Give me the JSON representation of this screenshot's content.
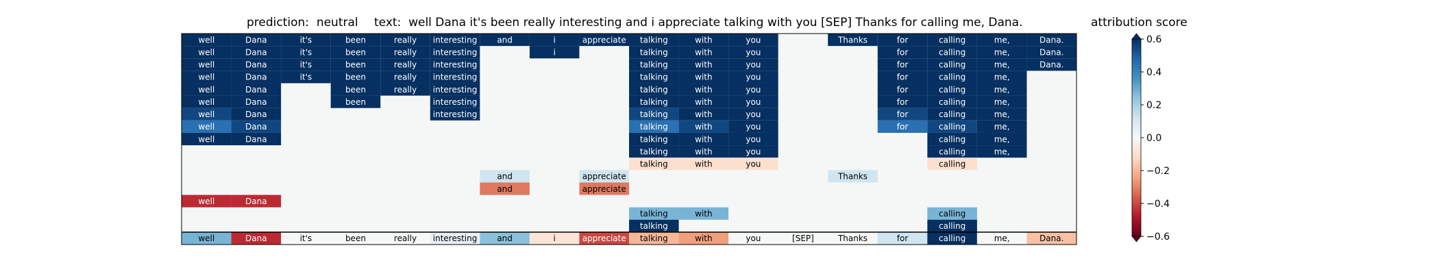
{
  "header": {
    "prediction_label": "prediction:  neutral",
    "text_label": "text:  well Dana it's been really interesting and i appreciate talking with you [SEP] Thanks for calling me, Dana.",
    "colorbar_title": "attribution score"
  },
  "chart_data": {
    "type": "heatmap",
    "tokens": [
      "well",
      "Dana",
      "it's",
      "been",
      "really",
      "interesting",
      "and",
      "i",
      "appreciate",
      "talking",
      "with",
      "you",
      "[SEP]",
      "Thanks",
      "for",
      "calling",
      "me,",
      "Dana."
    ],
    "rows": [
      [
        0.6,
        0.6,
        0.6,
        0.6,
        0.6,
        0.6,
        0.6,
        0.6,
        0.6,
        0.6,
        0.6,
        0.6,
        null,
        0.6,
        0.6,
        0.6,
        0.6,
        0.6
      ],
      [
        0.6,
        0.6,
        0.6,
        0.6,
        0.6,
        0.6,
        null,
        0.6,
        null,
        0.6,
        0.6,
        0.6,
        null,
        null,
        0.6,
        0.6,
        0.6,
        0.6
      ],
      [
        0.6,
        0.6,
        0.6,
        0.6,
        0.6,
        0.6,
        null,
        null,
        null,
        0.6,
        0.6,
        0.6,
        null,
        null,
        0.6,
        0.6,
        0.6,
        0.6
      ],
      [
        0.6,
        0.6,
        0.6,
        0.6,
        0.6,
        0.6,
        null,
        null,
        null,
        0.6,
        0.6,
        0.6,
        null,
        null,
        0.6,
        0.6,
        0.6,
        null
      ],
      [
        0.6,
        0.6,
        null,
        0.6,
        0.6,
        0.6,
        null,
        null,
        null,
        0.6,
        0.6,
        0.6,
        null,
        null,
        0.6,
        0.6,
        0.6,
        null
      ],
      [
        0.6,
        0.6,
        null,
        0.6,
        null,
        0.6,
        null,
        null,
        null,
        0.6,
        0.6,
        0.6,
        null,
        null,
        0.6,
        0.6,
        0.6,
        null
      ],
      [
        0.55,
        0.6,
        null,
        null,
        null,
        0.6,
        null,
        null,
        null,
        0.55,
        0.6,
        0.6,
        null,
        null,
        0.55,
        0.6,
        0.6,
        null
      ],
      [
        0.45,
        0.55,
        null,
        null,
        null,
        null,
        null,
        null,
        null,
        0.45,
        0.55,
        0.6,
        null,
        null,
        0.45,
        0.55,
        0.6,
        null
      ],
      [
        0.6,
        0.6,
        null,
        null,
        null,
        null,
        null,
        null,
        null,
        0.6,
        0.6,
        0.6,
        null,
        null,
        null,
        0.6,
        0.6,
        null
      ],
      [
        null,
        null,
        null,
        null,
        null,
        null,
        null,
        null,
        null,
        0.6,
        0.6,
        0.6,
        null,
        null,
        null,
        0.6,
        0.6,
        null
      ],
      [
        null,
        null,
        null,
        null,
        null,
        null,
        null,
        null,
        null,
        -0.1,
        -0.1,
        -0.1,
        null,
        null,
        null,
        -0.1,
        null,
        null
      ],
      [
        null,
        null,
        null,
        null,
        null,
        null,
        0.12,
        null,
        0.12,
        null,
        null,
        null,
        null,
        0.12,
        null,
        null,
        null,
        null
      ],
      [
        null,
        null,
        null,
        null,
        null,
        null,
        -0.32,
        null,
        -0.32,
        null,
        null,
        null,
        null,
        null,
        null,
        null,
        null,
        null
      ],
      [
        -0.45,
        -0.45,
        null,
        null,
        null,
        null,
        null,
        null,
        null,
        null,
        null,
        null,
        null,
        null,
        null,
        null,
        null,
        null
      ],
      [
        null,
        null,
        null,
        null,
        null,
        null,
        null,
        null,
        null,
        0.28,
        0.28,
        null,
        null,
        null,
        null,
        0.28,
        null,
        null
      ],
      [
        null,
        null,
        null,
        null,
        null,
        null,
        null,
        null,
        null,
        0.6,
        null,
        null,
        null,
        null,
        null,
        0.6,
        null,
        null
      ]
    ],
    "summary_row": [
      0.28,
      -0.45,
      0.0,
      0.0,
      0.0,
      0.05,
      0.25,
      -0.08,
      -0.4,
      -0.2,
      -0.25,
      0.0,
      0.0,
      0.0,
      0.12,
      0.6,
      0.0,
      -0.18
    ],
    "colorbar": {
      "min": -0.6,
      "max": 0.6,
      "ticks": [
        0.6,
        0.4,
        0.2,
        0.0,
        -0.2,
        -0.4,
        -0.6
      ],
      "tick_labels": [
        "0.6",
        "0.4",
        "0.2",
        "0.0",
        "−0.2",
        "−0.4",
        "−0.6"
      ],
      "colormap": "RdBu"
    },
    "background_color": "#f5f7f7",
    "grid": false
  }
}
